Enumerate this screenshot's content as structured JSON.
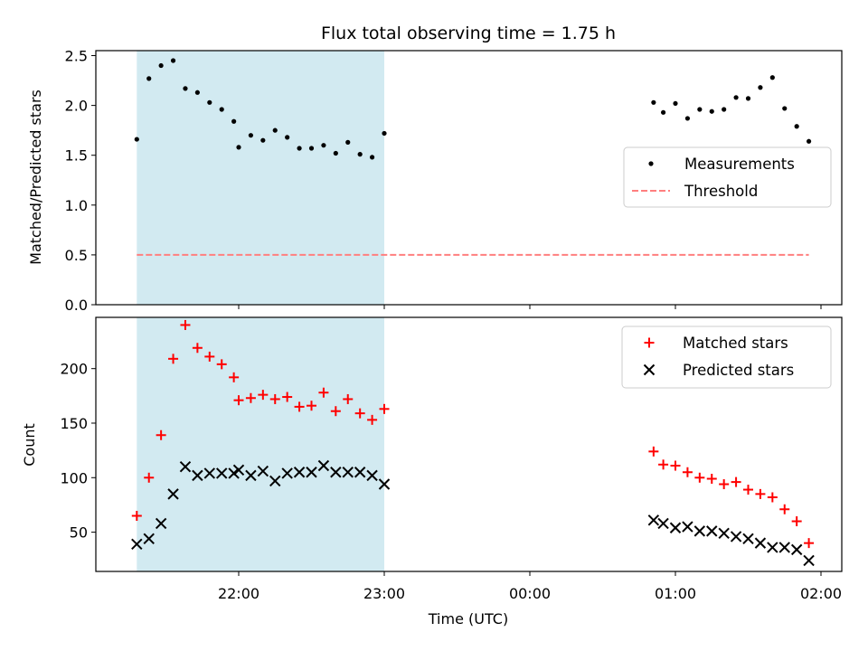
{
  "colors": {
    "measurement": "#000000",
    "threshold": "#ff7f7f",
    "matched": "#ff0000",
    "predicted": "#000000",
    "shade": "#add8e6"
  },
  "chart_data": [
    {
      "type": "scatter",
      "title": "Flux total observing time = 1.75 h",
      "xlabel": "",
      "ylabel": "Matched/Predicted stars",
      "ylim": [
        0,
        2.55
      ],
      "yticks": [
        "0.0",
        "0.5",
        "1.0",
        "1.5",
        "2.0",
        "2.5"
      ],
      "grid": false,
      "legend_position": "center-right",
      "shaded_span": {
        "from": "21:18",
        "to": "23:00"
      },
      "series": [
        {
          "name": "Measurements",
          "marker": "dot",
          "x": [
            "21:18",
            "21:23",
            "21:28",
            "21:33",
            "21:38",
            "21:43",
            "21:48",
            "21:53",
            "21:58",
            "22:00",
            "22:05",
            "22:10",
            "22:15",
            "22:20",
            "22:25",
            "22:30",
            "22:35",
            "22:40",
            "22:45",
            "22:50",
            "22:55",
            "23:00",
            "00:51",
            "00:55",
            "01:00",
            "01:05",
            "01:10",
            "01:15",
            "01:20",
            "01:25",
            "01:30",
            "01:35",
            "01:40",
            "01:45",
            "01:50",
            "01:55"
          ],
          "y": [
            1.66,
            2.27,
            2.4,
            2.45,
            2.17,
            2.13,
            2.03,
            1.96,
            1.84,
            1.58,
            1.7,
            1.65,
            1.75,
            1.68,
            1.57,
            1.57,
            1.6,
            1.52,
            1.63,
            1.51,
            1.48,
            1.72,
            2.03,
            1.93,
            2.02,
            1.87,
            1.96,
            1.94,
            1.96,
            2.08,
            2.07,
            2.18,
            2.28,
            1.97,
            1.79,
            1.64
          ]
        },
        {
          "name": "Threshold",
          "style": "dashed",
          "x": [
            "21:18",
            "01:55"
          ],
          "y": [
            0.5,
            0.5
          ]
        }
      ]
    },
    {
      "type": "scatter",
      "title": "",
      "xlabel": "Time (UTC)",
      "ylabel": "Count",
      "ylim": [
        14,
        247
      ],
      "yticks": [
        "50",
        "100",
        "150",
        "200"
      ],
      "xticks": [
        "22:00",
        "23:00",
        "00:00",
        "01:00",
        "02:00"
      ],
      "grid": false,
      "legend_position": "top-right",
      "shaded_span": {
        "from": "21:18",
        "to": "23:00"
      },
      "series": [
        {
          "name": "Matched stars",
          "marker": "plus",
          "x": [
            "21:18",
            "21:23",
            "21:28",
            "21:33",
            "21:38",
            "21:43",
            "21:48",
            "21:53",
            "21:58",
            "22:00",
            "22:05",
            "22:10",
            "22:15",
            "22:20",
            "22:25",
            "22:30",
            "22:35",
            "22:40",
            "22:45",
            "22:50",
            "22:55",
            "23:00",
            "00:51",
            "00:55",
            "01:00",
            "01:05",
            "01:10",
            "01:15",
            "01:20",
            "01:25",
            "01:30",
            "01:35",
            "01:40",
            "01:45",
            "01:50",
            "01:55"
          ],
          "y": [
            65,
            100,
            139,
            209,
            240,
            219,
            211,
            204,
            192,
            171,
            173,
            176,
            172,
            174,
            165,
            166,
            178,
            161,
            172,
            159,
            153,
            163,
            124,
            112,
            111,
            105,
            100,
            99,
            94,
            96,
            89,
            85,
            82,
            71,
            60,
            40
          ]
        },
        {
          "name": "Predicted stars",
          "marker": "x",
          "x": [
            "21:18",
            "21:23",
            "21:28",
            "21:33",
            "21:38",
            "21:43",
            "21:48",
            "21:53",
            "21:58",
            "22:00",
            "22:05",
            "22:10",
            "22:15",
            "22:20",
            "22:25",
            "22:30",
            "22:35",
            "22:40",
            "22:45",
            "22:50",
            "22:55",
            "23:00",
            "00:51",
            "00:55",
            "01:00",
            "01:05",
            "01:10",
            "01:15",
            "01:20",
            "01:25",
            "01:30",
            "01:35",
            "01:40",
            "01:45",
            "01:50",
            "01:55"
          ],
          "y": [
            39,
            44,
            58,
            85,
            110,
            102,
            104,
            104,
            104,
            107,
            102,
            106,
            97,
            104,
            105,
            105,
            111,
            105,
            105,
            105,
            102,
            94,
            61,
            58,
            54,
            55,
            51,
            51,
            49,
            46,
            44,
            40,
            36,
            36,
            34,
            24
          ]
        }
      ]
    }
  ]
}
